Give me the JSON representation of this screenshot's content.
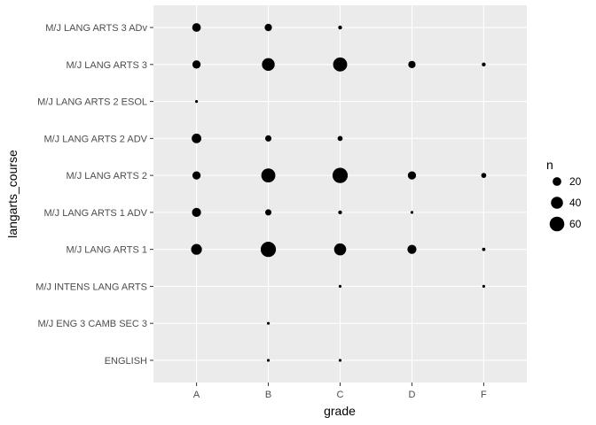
{
  "chart_data": {
    "type": "scatter",
    "xlabel": "grade",
    "ylabel": "langarts_course",
    "categories_x": [
      "A",
      "B",
      "C",
      "D",
      "F"
    ],
    "categories_y": [
      "ENGLISH",
      "M/J ENG 3 CAMB SEC 3",
      "M/J INTENS LANG ARTS",
      "M/J LANG ARTS 1",
      "M/J LANG ARTS 1 ADV",
      "M/J LANG ARTS 2",
      "M/J LANG ARTS 2 ADV",
      "M/J LANG ARTS 2 ESOL",
      "M/J LANG ARTS 3",
      "M/J LANG ARTS 3 ADv"
    ],
    "points": [
      {
        "x": "A",
        "y": "M/J LANG ARTS 3 ADv",
        "n": 20
      },
      {
        "x": "B",
        "y": "M/J LANG ARTS 3 ADv",
        "n": 14
      },
      {
        "x": "C",
        "y": "M/J LANG ARTS 3 ADv",
        "n": 3
      },
      {
        "x": "A",
        "y": "M/J LANG ARTS 3",
        "n": 18
      },
      {
        "x": "B",
        "y": "M/J LANG ARTS 3",
        "n": 45
      },
      {
        "x": "C",
        "y": "M/J LANG ARTS 3",
        "n": 55
      },
      {
        "x": "D",
        "y": "M/J LANG ARTS 3",
        "n": 14
      },
      {
        "x": "F",
        "y": "M/J LANG ARTS 3",
        "n": 3
      },
      {
        "x": "A",
        "y": "M/J LANG ARTS 2 ESOL",
        "n": 1
      },
      {
        "x": "A",
        "y": "M/J LANG ARTS 2 ADV",
        "n": 25
      },
      {
        "x": "B",
        "y": "M/J LANG ARTS 2 ADV",
        "n": 10
      },
      {
        "x": "C",
        "y": "M/J LANG ARTS 2 ADV",
        "n": 6
      },
      {
        "x": "A",
        "y": "M/J LANG ARTS 2",
        "n": 18
      },
      {
        "x": "B",
        "y": "M/J LANG ARTS 2",
        "n": 55
      },
      {
        "x": "C",
        "y": "M/J LANG ARTS 2",
        "n": 65
      },
      {
        "x": "D",
        "y": "M/J LANG ARTS 2",
        "n": 18
      },
      {
        "x": "F",
        "y": "M/J LANG ARTS 2",
        "n": 6
      },
      {
        "x": "A",
        "y": "M/J LANG ARTS 1 ADV",
        "n": 22
      },
      {
        "x": "B",
        "y": "M/J LANG ARTS 1 ADV",
        "n": 10
      },
      {
        "x": "C",
        "y": "M/J LANG ARTS 1 ADV",
        "n": 3
      },
      {
        "x": "D",
        "y": "M/J LANG ARTS 1 ADV",
        "n": 1
      },
      {
        "x": "A",
        "y": "M/J LANG ARTS 1",
        "n": 32
      },
      {
        "x": "B",
        "y": "M/J LANG ARTS 1",
        "n": 65
      },
      {
        "x": "C",
        "y": "M/J LANG ARTS 1",
        "n": 40
      },
      {
        "x": "D",
        "y": "M/J LANG ARTS 1",
        "n": 22
      },
      {
        "x": "F",
        "y": "M/J LANG ARTS 1",
        "n": 2
      },
      {
        "x": "C",
        "y": "M/J INTENS LANG ARTS",
        "n": 1
      },
      {
        "x": "F",
        "y": "M/J INTENS LANG ARTS",
        "n": 1
      },
      {
        "x": "B",
        "y": "M/J ENG 3 CAMB SEC 3",
        "n": 1
      },
      {
        "x": "B",
        "y": "ENGLISH",
        "n": 1
      },
      {
        "x": "C",
        "y": "ENGLISH",
        "n": 1
      }
    ],
    "size_legend": {
      "title": "n",
      "breaks": [
        20,
        40,
        60
      ]
    },
    "size_range_n": [
      1,
      65
    ],
    "grid": true,
    "legend_position": "right",
    "colors": {
      "panel_background": "#EBEBEB",
      "grid": "#FFFFFF",
      "point": "#000000",
      "tick_text": "#4D4D4D"
    }
  }
}
